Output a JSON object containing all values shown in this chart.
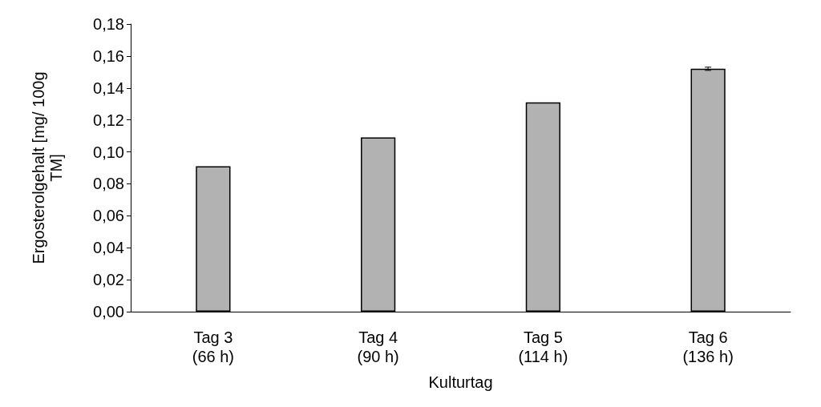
{
  "chart_data": {
    "type": "bar",
    "xlabel": "Kulturtag",
    "ylabel": "Ergosterolgehalt [mg/ 100g\nTM]",
    "categories": [
      "Tag 3\n(66 h)",
      "Tag 4\n(90 h)",
      "Tag 5\n(114 h)",
      "Tag 6\n(136 h)"
    ],
    "values": [
      0.091,
      0.109,
      0.131,
      0.152
    ],
    "errors": [
      null,
      null,
      null,
      0.001
    ],
    "color": "#b2b2b2",
    "ylim": [
      0,
      0.18
    ],
    "yticks": [
      {
        "value": 0,
        "label": "0,00"
      },
      {
        "value": 0.02,
        "label": "0,02"
      },
      {
        "value": 0.04,
        "label": "0,04"
      },
      {
        "value": 0.06,
        "label": "0,06"
      },
      {
        "value": 0.08,
        "label": "0,08"
      },
      {
        "value": 0.1,
        "label": "0,10"
      },
      {
        "value": 0.12,
        "label": "0,12"
      },
      {
        "value": 0.14,
        "label": "0,14"
      },
      {
        "value": 0.16,
        "label": "0,16"
      },
      {
        "value": 0.18,
        "label": "0,18"
      }
    ],
    "grid": false
  }
}
